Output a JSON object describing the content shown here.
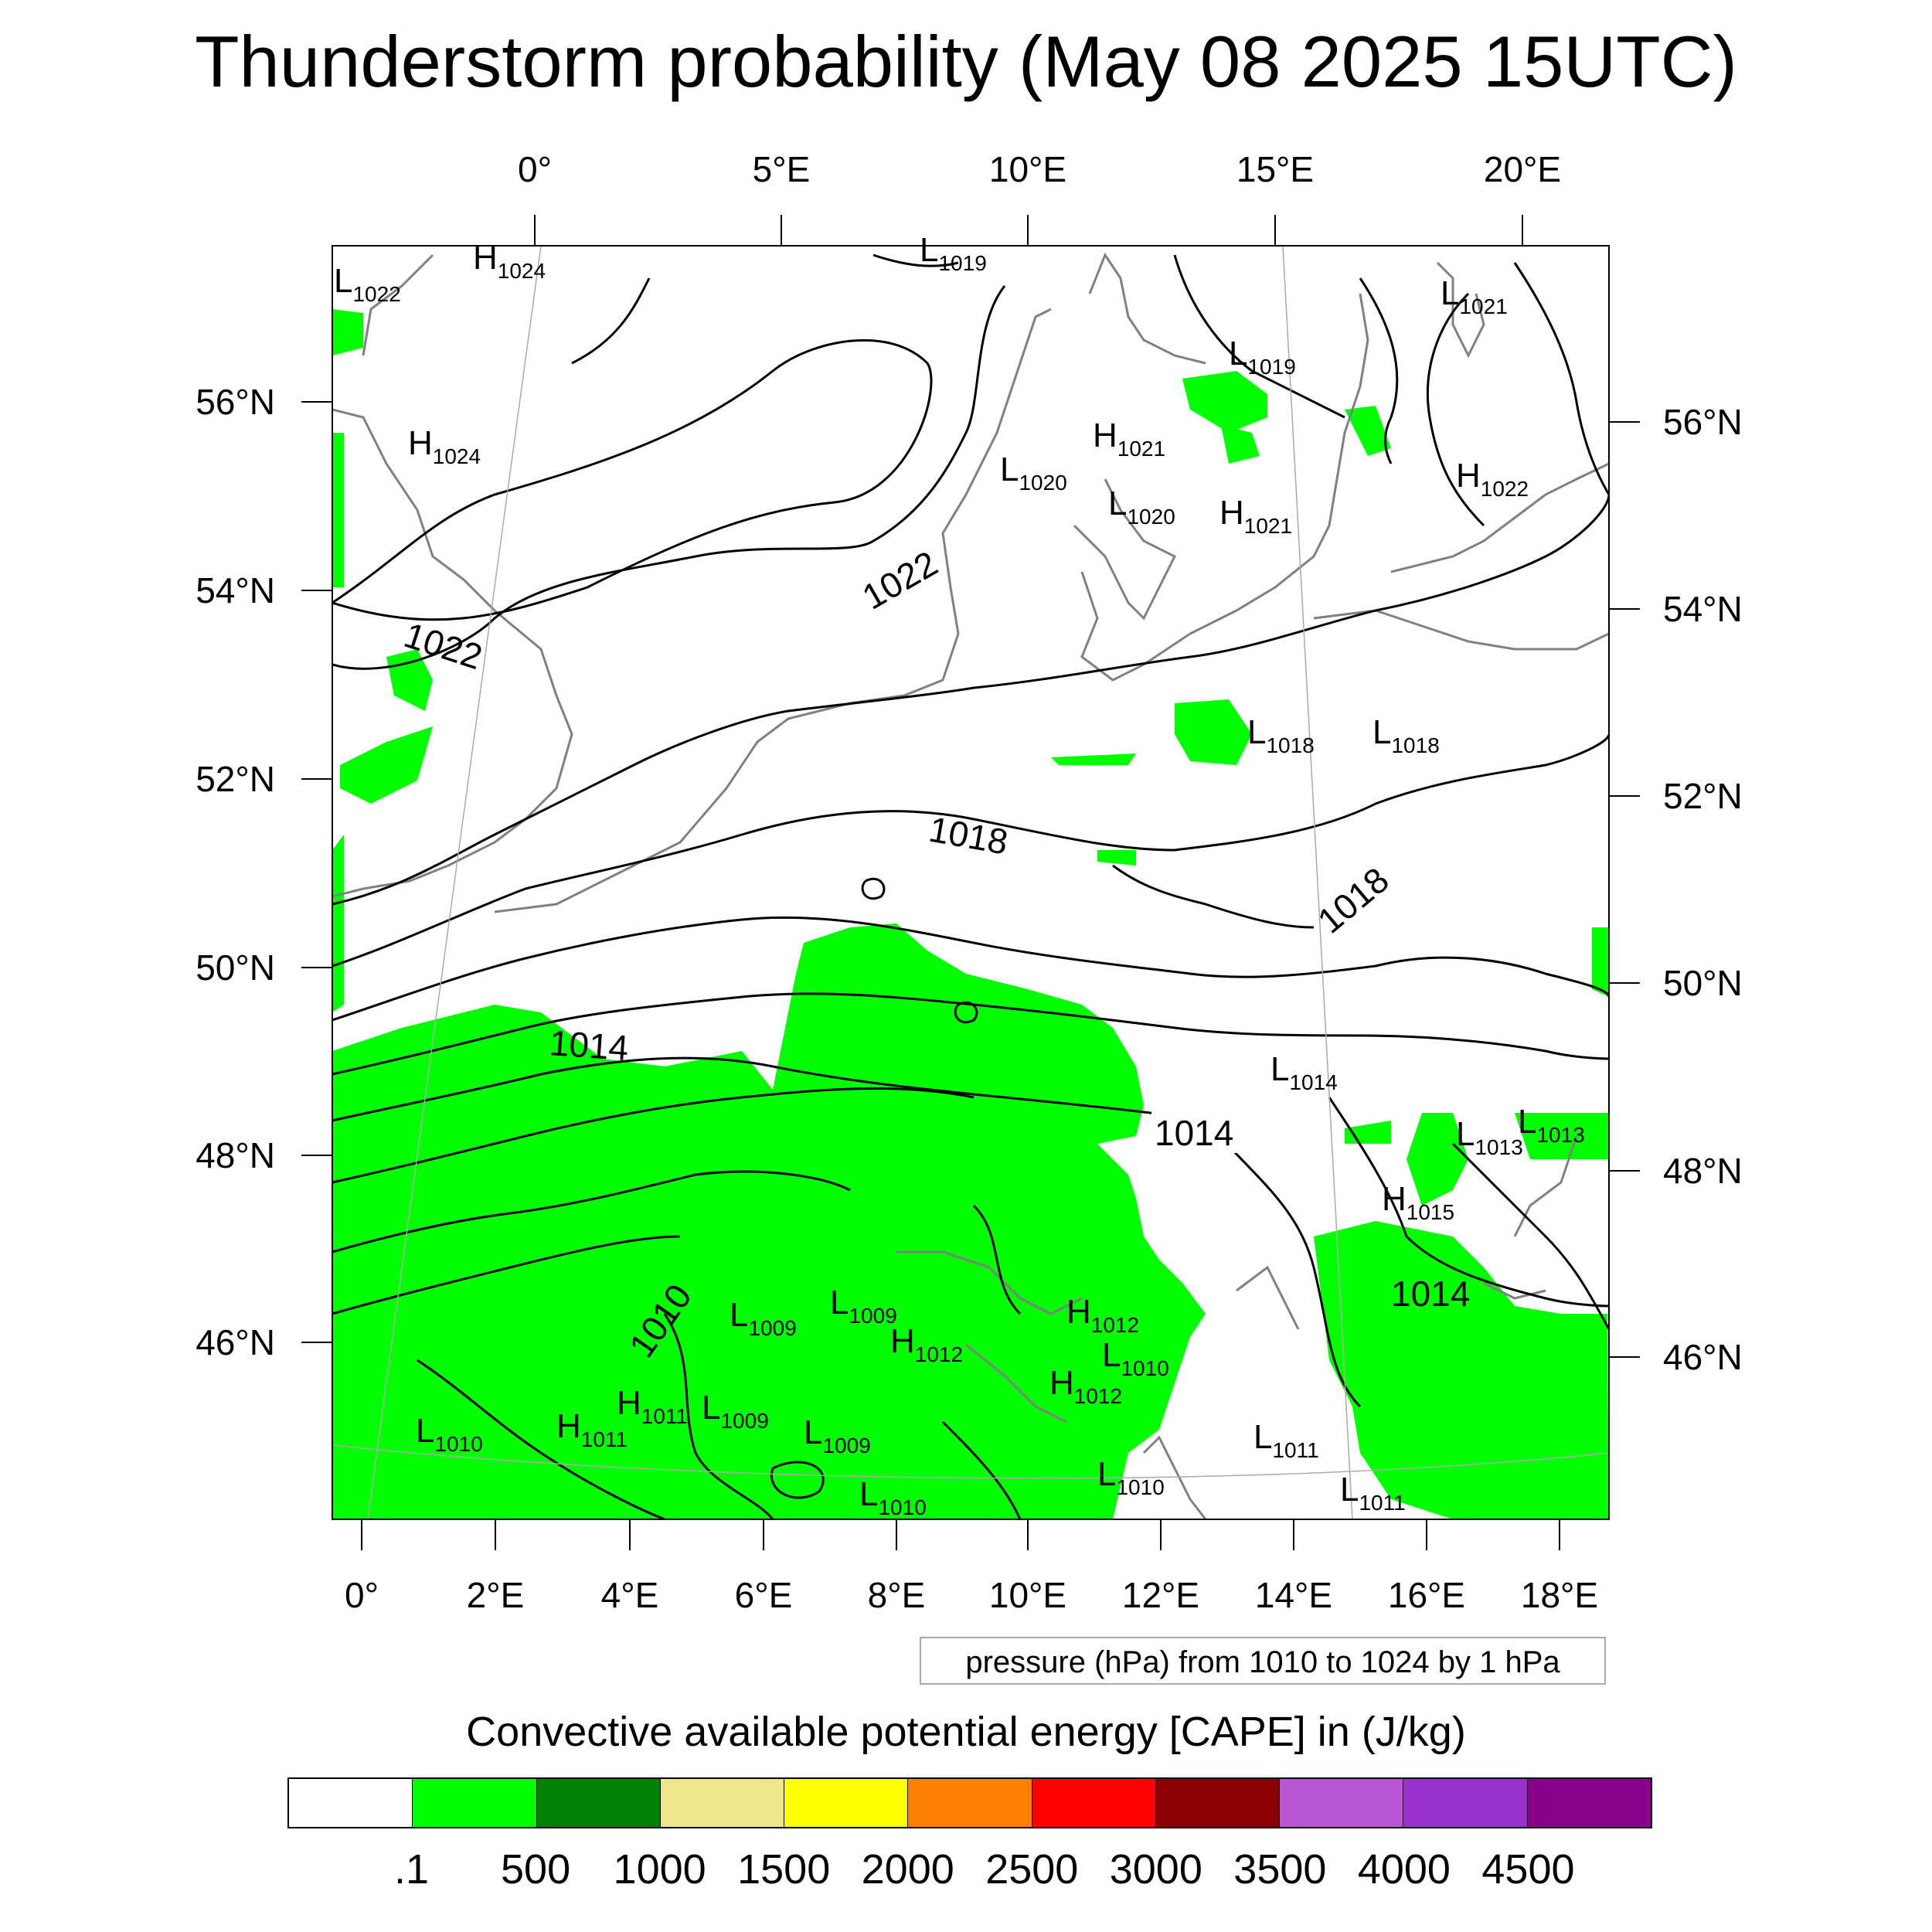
{
  "title": "Thunderstorm probability (May 08 2025 15UTC)",
  "top_axis": [
    "0°",
    "5°E",
    "10°E",
    "15°E",
    "20°E"
  ],
  "bottom_axis": [
    "0°",
    "2°E",
    "4°E",
    "6°E",
    "8°E",
    "10°E",
    "12°E",
    "14°E",
    "16°E",
    "18°E"
  ],
  "left_axis": [
    "56°N",
    "54°N",
    "52°N",
    "50°N",
    "48°N",
    "46°N"
  ],
  "right_axis": [
    "56°N",
    "54°N",
    "52°N",
    "50°N",
    "48°N",
    "46°N"
  ],
  "isobar_labels": [
    "1022",
    "1022",
    "1018",
    "1018",
    "1014",
    "1014",
    "1014",
    "1010"
  ],
  "pressure_systems": [
    {
      "type": "H",
      "value": "1024"
    },
    {
      "type": "L",
      "value": "1022"
    },
    {
      "type": "L",
      "value": "1019"
    },
    {
      "type": "L",
      "value": "1021"
    },
    {
      "type": "L",
      "value": "1019"
    },
    {
      "type": "H",
      "value": "1024"
    },
    {
      "type": "H",
      "value": "1021"
    },
    {
      "type": "L",
      "value": "1020"
    },
    {
      "type": "L",
      "value": "1020"
    },
    {
      "type": "H",
      "value": "1021"
    },
    {
      "type": "H",
      "value": "1022"
    },
    {
      "type": "L",
      "value": "1018"
    },
    {
      "type": "L",
      "value": "1018"
    },
    {
      "type": "L",
      "value": "1014"
    },
    {
      "type": "L",
      "value": "1013"
    },
    {
      "type": "L",
      "value": "1013"
    },
    {
      "type": "H",
      "value": "1015"
    },
    {
      "type": "L",
      "value": "1009"
    },
    {
      "type": "L",
      "value": "1009"
    },
    {
      "type": "H",
      "value": "1012"
    },
    {
      "type": "H",
      "value": "1012"
    },
    {
      "type": "L",
      "value": "1010"
    },
    {
      "type": "H",
      "value": "1012"
    },
    {
      "type": "H",
      "value": "1011"
    },
    {
      "type": "L",
      "value": "1009"
    },
    {
      "type": "L",
      "value": "1010"
    },
    {
      "type": "H",
      "value": "1011"
    },
    {
      "type": "L",
      "value": "1009"
    },
    {
      "type": "L",
      "value": "1010"
    },
    {
      "type": "L",
      "value": "1010"
    },
    {
      "type": "L",
      "value": "1011"
    },
    {
      "type": "L",
      "value": "1011"
    }
  ],
  "pressure_note": "pressure (hPa) from 1010 to 1024 by 1 hPa",
  "colorbar": {
    "title": "Convective available potential energy [CAPE] in (J/kg)",
    "colors": [
      "#ffffff",
      "#00ff00",
      "#008000",
      "#f0e68c",
      "#ffff00",
      "#ff8000",
      "#ff0000",
      "#8b0000",
      "#ba55d3",
      "#9932cc",
      "#8b008b"
    ],
    "labels": [
      ".1",
      "500",
      "1000",
      "1500",
      "2000",
      "2500",
      "3000",
      "3500",
      "4000",
      "4500"
    ]
  },
  "colors": {
    "cape_fill": "#00ff00",
    "coast": "#808080",
    "isobar": "#000000"
  }
}
